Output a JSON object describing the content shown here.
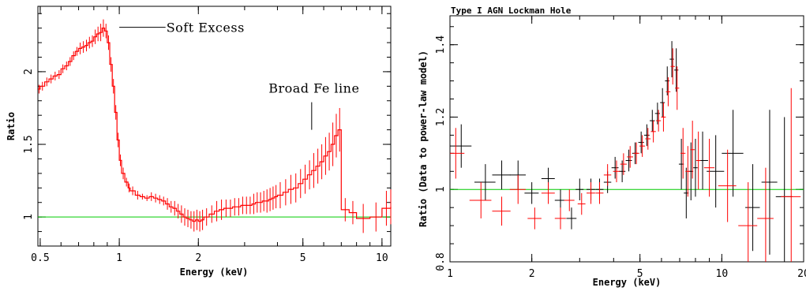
{
  "chart_data": [
    {
      "type": "line",
      "title": "",
      "xlabel": "Energy (keV)",
      "ylabel": "Ratio",
      "xscale": "log",
      "xlim": [
        0.49,
        10.8
      ],
      "ylim": [
        0.8,
        2.45
      ],
      "xticks": [
        0.5,
        1,
        2,
        5,
        10
      ],
      "xtick_labels": [
        "0.5",
        "1",
        "2",
        "5",
        "10"
      ],
      "yticks": [
        1,
        1.5,
        2
      ],
      "ytick_labels": [
        "1",
        "1.5",
        "2"
      ],
      "reference_line": {
        "y": 1,
        "color": "#00cc00"
      },
      "series_color": "#ff0000",
      "annotations": [
        {
          "text": "Soft Excess",
          "x": 1.0,
          "y": 2.3,
          "line_from_x": 1.0,
          "line_to_x": 1.5
        },
        {
          "text": "Broad Fe line",
          "x": 5.4,
          "y": 1.6
        }
      ],
      "series": [
        {
          "x": [
            0.49,
            0.5,
            0.52,
            0.54,
            0.56,
            0.58,
            0.6,
            0.62,
            0.64,
            0.66,
            0.68,
            0.7,
            0.72,
            0.74,
            0.76,
            0.78,
            0.8,
            0.82,
            0.84,
            0.86,
            0.88,
            0.9,
            0.92,
            0.94,
            0.96,
            0.98,
            1.0,
            1.02,
            1.05,
            1.08,
            1.1,
            1.15,
            1.2,
            1.25,
            1.3,
            1.35,
            1.4,
            1.45,
            1.5,
            1.55,
            1.6,
            1.65,
            1.7,
            1.75,
            1.8,
            1.85,
            1.9,
            1.95,
            2.0,
            2.05,
            2.1,
            2.2,
            2.3,
            2.4,
            2.5,
            2.6,
            2.7,
            2.8,
            2.9,
            3.0,
            3.1,
            3.2,
            3.3,
            3.4,
            3.5,
            3.6,
            3.7,
            3.8,
            3.9,
            4.0,
            4.2,
            4.4,
            4.6,
            4.8,
            5.0,
            5.2,
            5.4,
            5.6,
            5.8,
            6.0,
            6.2,
            6.4,
            6.6,
            6.8,
            7.0,
            7.5,
            8.0,
            9.0,
            10.0,
            10.8
          ],
          "y": [
            1.88,
            1.9,
            1.93,
            1.95,
            1.97,
            1.98,
            2.02,
            2.04,
            2.07,
            2.11,
            2.14,
            2.16,
            2.17,
            2.18,
            2.2,
            2.21,
            2.24,
            2.26,
            2.27,
            2.3,
            2.28,
            2.2,
            2.05,
            1.9,
            1.72,
            1.53,
            1.39,
            1.3,
            1.24,
            1.2,
            1.18,
            1.15,
            1.14,
            1.13,
            1.14,
            1.13,
            1.12,
            1.11,
            1.09,
            1.07,
            1.06,
            1.04,
            1.02,
            1.0,
            0.99,
            0.98,
            0.97,
            0.98,
            0.97,
            0.98,
            1.0,
            1.02,
            1.04,
            1.05,
            1.06,
            1.06,
            1.07,
            1.07,
            1.08,
            1.08,
            1.08,
            1.09,
            1.1,
            1.1,
            1.11,
            1.11,
            1.12,
            1.13,
            1.14,
            1.15,
            1.17,
            1.19,
            1.2,
            1.23,
            1.26,
            1.29,
            1.32,
            1.35,
            1.38,
            1.42,
            1.45,
            1.5,
            1.56,
            1.6,
            1.05,
            1.03,
            0.99,
            1.0,
            1.06,
            1.07
          ],
          "err": [
            0.03,
            0.03,
            0.03,
            0.03,
            0.03,
            0.03,
            0.03,
            0.03,
            0.03,
            0.03,
            0.03,
            0.04,
            0.04,
            0.04,
            0.04,
            0.04,
            0.05,
            0.05,
            0.06,
            0.06,
            0.05,
            0.05,
            0.05,
            0.05,
            0.05,
            0.05,
            0.04,
            0.04,
            0.03,
            0.03,
            0.03,
            0.03,
            0.02,
            0.02,
            0.03,
            0.03,
            0.03,
            0.03,
            0.04,
            0.04,
            0.05,
            0.05,
            0.06,
            0.06,
            0.06,
            0.06,
            0.07,
            0.07,
            0.07,
            0.07,
            0.06,
            0.06,
            0.07,
            0.07,
            0.06,
            0.06,
            0.06,
            0.06,
            0.06,
            0.06,
            0.06,
            0.07,
            0.07,
            0.07,
            0.07,
            0.08,
            0.08,
            0.08,
            0.08,
            0.09,
            0.09,
            0.1,
            0.1,
            0.1,
            0.1,
            0.1,
            0.12,
            0.12,
            0.12,
            0.13,
            0.13,
            0.15,
            0.15,
            0.15,
            0.08,
            0.08,
            0.1,
            0.1,
            0.12,
            0.12
          ]
        }
      ]
    },
    {
      "type": "scatter",
      "title": "Type I AGN Lockman Hole",
      "xlabel": "Energy (keV)",
      "ylabel": "Ratio (Data to power-law model)",
      "xscale": "log",
      "xlim": [
        1,
        20
      ],
      "ylim": [
        0.8,
        1.48
      ],
      "xticks": [
        1,
        2,
        5,
        10,
        20
      ],
      "xtick_labels": [
        "1",
        "2",
        "5",
        "10",
        "20"
      ],
      "yticks": [
        0.8,
        1,
        1.2,
        1.4
      ],
      "ytick_labels": [
        "0.8",
        "1",
        "1.2",
        "1.4"
      ],
      "reference_line": {
        "y": 1,
        "color": "#00cc00"
      },
      "series": [
        {
          "color": "#000000",
          "x": [
            1.1,
            1.35,
            1.55,
            1.78,
            2.0,
            2.3,
            2.55,
            2.8,
            3.0,
            3.3,
            3.55,
            3.8,
            4.05,
            4.3,
            4.55,
            4.8,
            5.05,
            5.3,
            5.55,
            5.8,
            6.05,
            6.3,
            6.55,
            6.8,
            7.1,
            7.4,
            7.7,
            8.0,
            8.5,
            9.5,
            11,
            13,
            15,
            17
          ],
          "y": [
            1.12,
            1.02,
            1.04,
            1.04,
            0.99,
            1.03,
            0.97,
            0.92,
            1.0,
            1.0,
            1.0,
            1.02,
            1.06,
            1.05,
            1.08,
            1.1,
            1.13,
            1.15,
            1.19,
            1.21,
            1.24,
            1.3,
            1.36,
            1.33,
            1.07,
            0.99,
            1.05,
            1.06,
            1.08,
            1.05,
            1.1,
            0.95,
            1.02,
            0.98
          ],
          "xerr": [
            0.1,
            0.12,
            0.12,
            0.12,
            0.12,
            0.13,
            0.12,
            0.12,
            0.1,
            0.12,
            0.12,
            0.12,
            0.12,
            0.12,
            0.12,
            0.12,
            0.12,
            0.12,
            0.12,
            0.12,
            0.12,
            0.12,
            0.12,
            0.12,
            0.15,
            0.15,
            0.15,
            0.15,
            0.4,
            0.7,
            1.0,
            0.8,
            1.0,
            1.2
          ],
          "yerr": [
            0.06,
            0.05,
            0.04,
            0.04,
            0.03,
            0.03,
            0.03,
            0.03,
            0.03,
            0.03,
            0.03,
            0.03,
            0.03,
            0.03,
            0.03,
            0.03,
            0.03,
            0.03,
            0.03,
            0.03,
            0.04,
            0.04,
            0.05,
            0.06,
            0.07,
            0.07,
            0.08,
            0.08,
            0.08,
            0.1,
            0.12,
            0.12,
            0.2,
            0.22
          ]
        },
        {
          "color": "#ff0000",
          "x": [
            1.05,
            1.3,
            1.55,
            1.78,
            2.05,
            2.3,
            2.55,
            2.75,
            3.05,
            3.3,
            3.55,
            3.8,
            4.1,
            4.35,
            4.6,
            4.85,
            5.1,
            5.35,
            5.6,
            5.85,
            6.1,
            6.35,
            6.6,
            6.85,
            7.2,
            7.5,
            7.8,
            8.2,
            9.0,
            10.5,
            12.5,
            14.5,
            18
          ],
          "y": [
            1.1,
            0.97,
            0.94,
            1.0,
            0.92,
            0.99,
            0.92,
            0.97,
            0.96,
            0.99,
            0.99,
            1.04,
            1.05,
            1.07,
            1.09,
            1.1,
            1.12,
            1.14,
            1.16,
            1.19,
            1.2,
            1.27,
            1.34,
            1.28,
            1.1,
            1.05,
            1.11,
            1.08,
            1.06,
            1.01,
            0.9,
            0.92,
            0.98
          ],
          "xerr": [
            0.08,
            0.12,
            0.12,
            0.12,
            0.12,
            0.13,
            0.12,
            0.12,
            0.1,
            0.12,
            0.12,
            0.12,
            0.12,
            0.12,
            0.12,
            0.12,
            0.12,
            0.12,
            0.12,
            0.12,
            0.12,
            0.12,
            0.12,
            0.12,
            0.15,
            0.15,
            0.15,
            0.15,
            0.4,
            0.8,
            1.0,
            1.0,
            1.5
          ],
          "yerr": [
            0.07,
            0.05,
            0.04,
            0.04,
            0.03,
            0.03,
            0.03,
            0.03,
            0.03,
            0.03,
            0.03,
            0.03,
            0.03,
            0.03,
            0.03,
            0.03,
            0.03,
            0.03,
            0.03,
            0.03,
            0.04,
            0.04,
            0.05,
            0.06,
            0.07,
            0.07,
            0.08,
            0.08,
            0.08,
            0.1,
            0.12,
            0.14,
            0.3
          ]
        }
      ]
    }
  ]
}
